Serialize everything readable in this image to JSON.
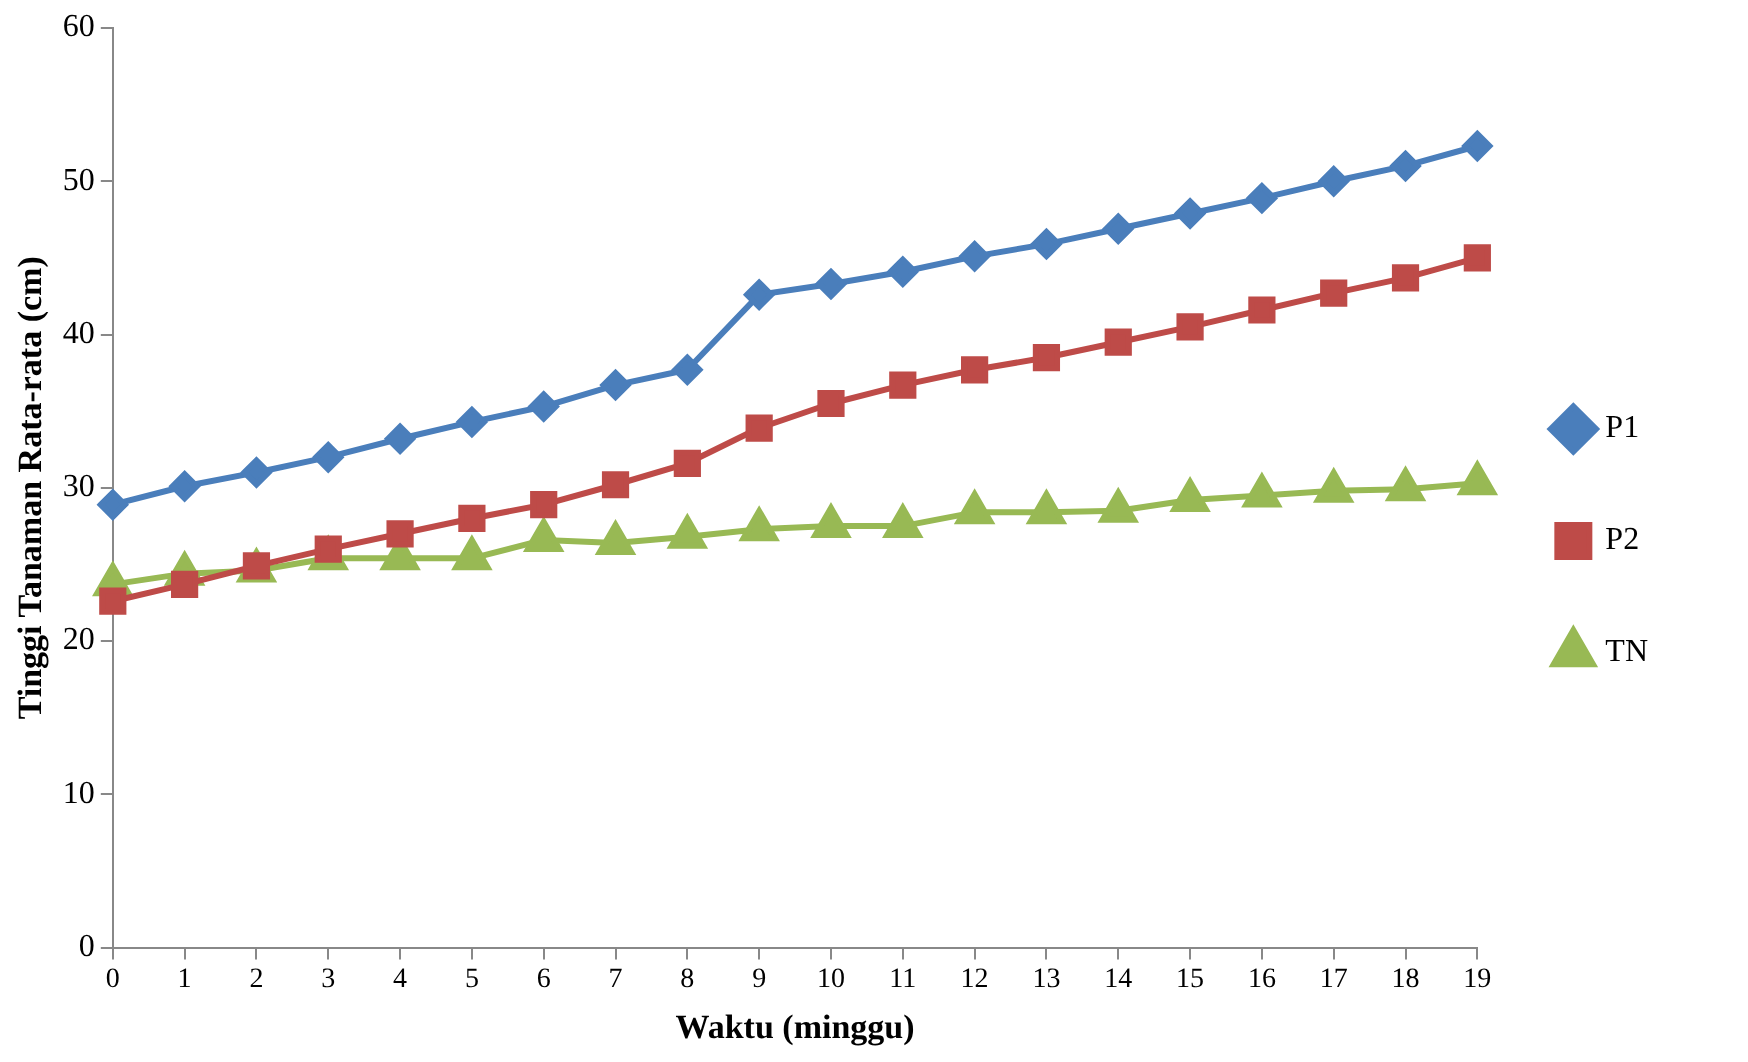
{
  "chart_data": {
    "type": "line",
    "xlabel": "Waktu (minggu)",
    "ylabel": "Tinggi Tanaman Rata-rata (cm)",
    "categories": [
      "0",
      "1",
      "2",
      "3",
      "4",
      "5",
      "6",
      "7",
      "8",
      "9",
      "10",
      "11",
      "12",
      "13",
      "14",
      "15",
      "16",
      "17",
      "18",
      "19"
    ],
    "series": [
      {
        "name": "P1",
        "color": "#4a7ebb",
        "marker": "diamond",
        "values": [
          28.9,
          30.1,
          31.0,
          32.0,
          33.2,
          34.3,
          35.3,
          36.7,
          37.7,
          42.6,
          43.3,
          44.1,
          45.1,
          45.9,
          46.9,
          47.9,
          48.9,
          50.0,
          51.0,
          52.3
        ]
      },
      {
        "name": "P2",
        "color": "#be4b48",
        "marker": "square",
        "values": [
          22.6,
          23.7,
          24.9,
          26.0,
          27.0,
          28.0,
          28.9,
          30.2,
          31.6,
          33.9,
          35.5,
          36.7,
          37.7,
          38.5,
          39.5,
          40.5,
          41.6,
          42.7,
          43.7,
          45.0
        ]
      },
      {
        "name": "TN",
        "color": "#98b954",
        "marker": "triangle",
        "values": [
          23.7,
          24.4,
          24.6,
          25.4,
          25.4,
          25.4,
          26.6,
          26.4,
          26.8,
          27.3,
          27.5,
          27.5,
          28.4,
          28.4,
          28.5,
          29.2,
          29.5,
          29.8,
          29.9,
          30.3
        ]
      }
    ],
    "ylim": [
      0,
      60
    ],
    "yticks": [
      0,
      10,
      20,
      30,
      40,
      50,
      60
    ],
    "grid": false,
    "legend": "right",
    "line_style": "solid"
  }
}
